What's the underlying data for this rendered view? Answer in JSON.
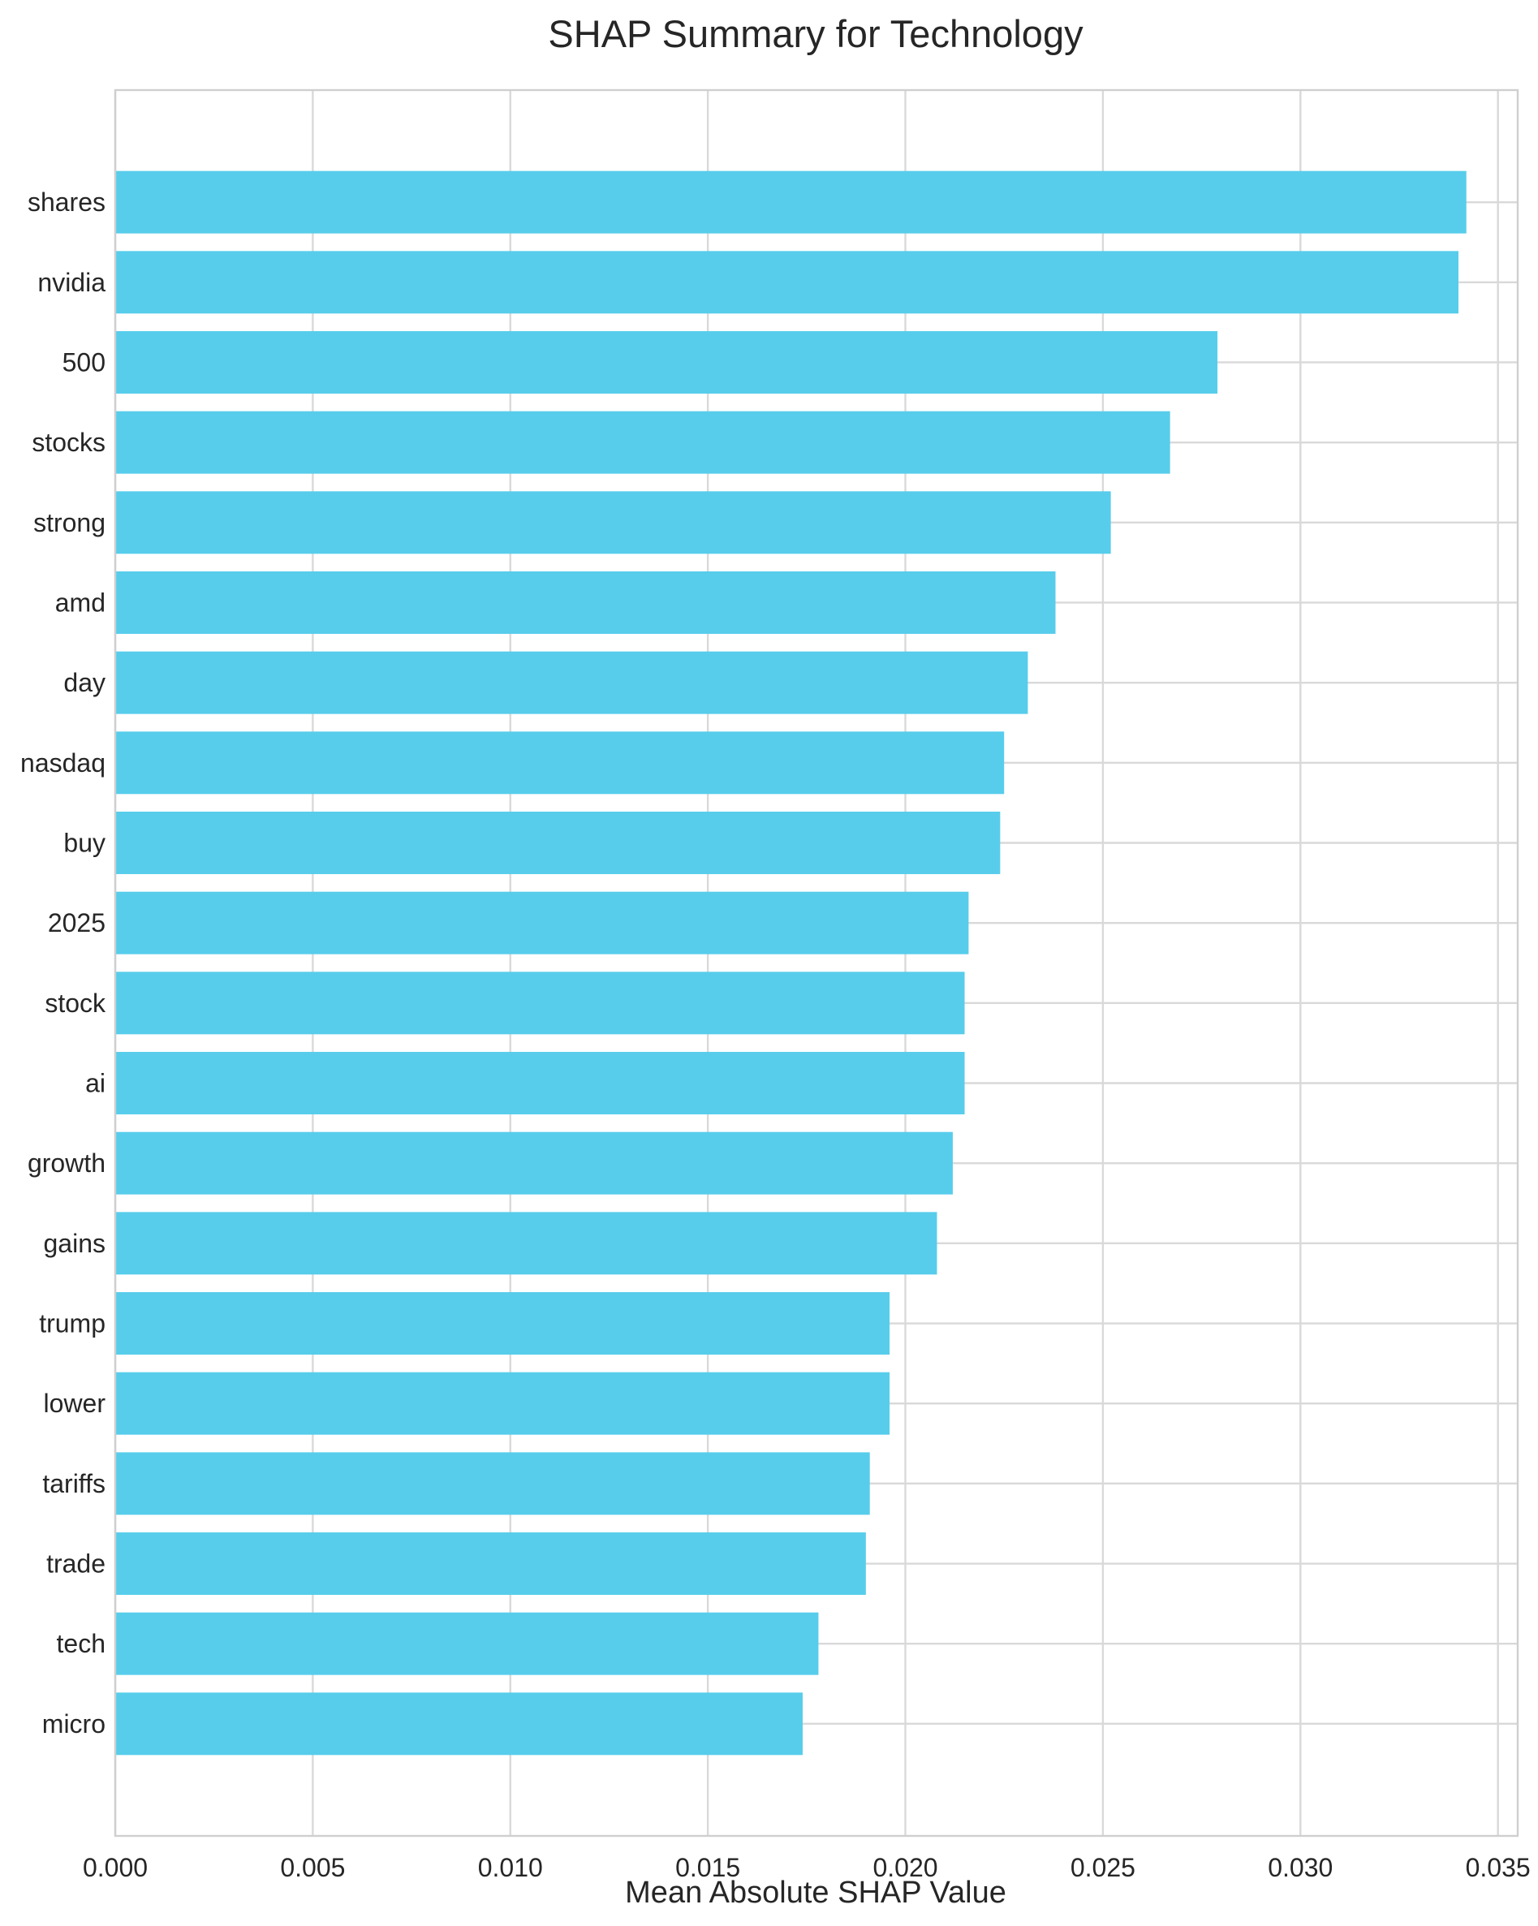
{
  "chart_data": {
    "type": "bar",
    "orientation": "horizontal",
    "title": "SHAP Summary for Technology",
    "xlabel": "Mean Absolute SHAP Value",
    "ylabel": "",
    "xlim": [
      0,
      0.0355
    ],
    "xticks": [
      "0.000",
      "0.005",
      "0.010",
      "0.015",
      "0.020",
      "0.025",
      "0.030",
      "0.035"
    ],
    "grid": true,
    "bar_color": "#57CDEB",
    "categories": [
      "shares",
      "nvidia",
      "500",
      "stocks",
      "strong",
      "amd",
      "day",
      "nasdaq",
      "buy",
      "2025",
      "stock",
      "ai",
      "growth",
      "gains",
      "trump",
      "lower",
      "tariffs",
      "trade",
      "tech",
      "micro"
    ],
    "values": [
      0.0342,
      0.034,
      0.0279,
      0.0267,
      0.0252,
      0.0238,
      0.0231,
      0.0225,
      0.0224,
      0.0216,
      0.0215,
      0.0215,
      0.0212,
      0.0208,
      0.0196,
      0.0196,
      0.0191,
      0.019,
      0.0178,
      0.0174
    ]
  }
}
